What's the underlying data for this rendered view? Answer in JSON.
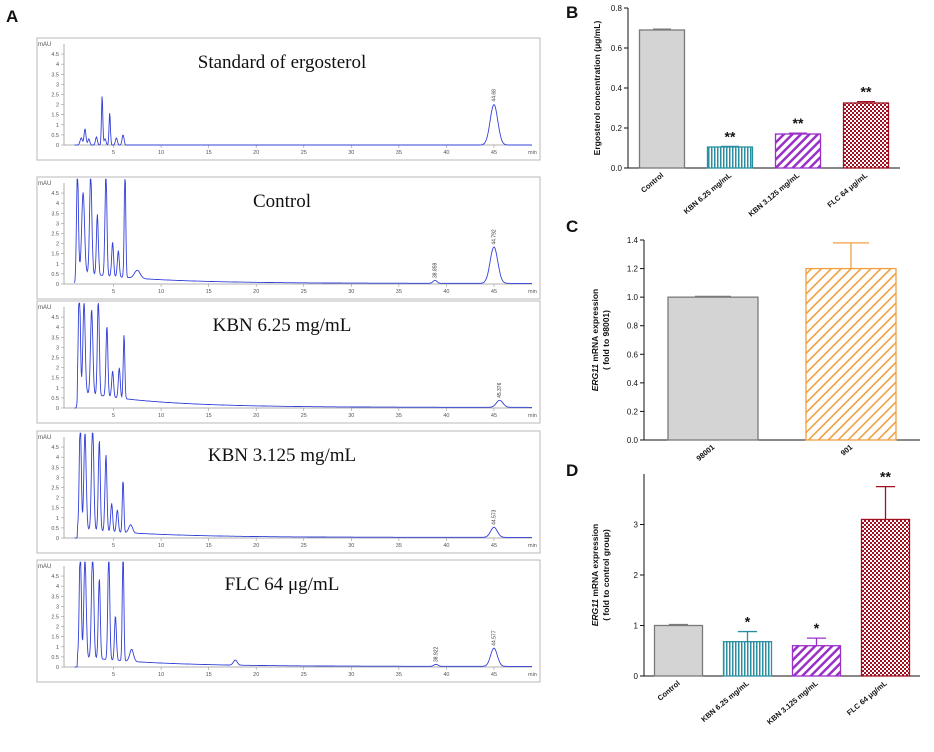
{
  "panel_letters": {
    "a": "A",
    "b": "B",
    "c": "C",
    "d": "D"
  },
  "chart_data": [
    {
      "id": "A",
      "type": "line",
      "subtype": "hplc-chromatogram-stack",
      "y_unit": "mAU",
      "x_unit": "min",
      "y_ticks": [
        "0",
        "0.5",
        "1",
        "1.5",
        "2",
        "2.5",
        "3",
        "3.5",
        "4",
        "4.5"
      ],
      "x_ticks": [
        "5",
        "10",
        "15",
        "20",
        "25",
        "30",
        "35",
        "40",
        "45"
      ],
      "xlim": [
        0,
        49
      ],
      "ylim": [
        0,
        4.8
      ],
      "traces": [
        {
          "title": "Standard of ergosterol",
          "peaks": [
            {
              "t": 1.6,
              "h": 0.35,
              "w": 0.12
            },
            {
              "t": 2.0,
              "h": 0.8,
              "w": 0.1
            },
            {
              "t": 2.4,
              "h": 0.3,
              "w": 0.1
            },
            {
              "t": 3.2,
              "h": 0.4,
              "w": 0.1
            },
            {
              "t": 3.8,
              "h": 2.45,
              "w": 0.07
            },
            {
              "t": 4.1,
              "h": 0.3,
              "w": 0.1
            },
            {
              "t": 4.6,
              "h": 1.6,
              "w": 0.07
            },
            {
              "t": 5.3,
              "h": 0.35,
              "w": 0.1
            },
            {
              "t": 6.0,
              "h": 0.5,
              "w": 0.1
            },
            {
              "t": 45.0,
              "h": 2.0,
              "w": 0.4
            }
          ],
          "baseline": 0,
          "labels": [
            {
              "t": 45.0,
              "text": "44.68"
            }
          ]
        },
        {
          "title": "Control",
          "peaks": [
            {
              "t": 1.2,
              "h": 5.5,
              "w": 0.1
            },
            {
              "t": 1.8,
              "h": 4.0,
              "w": 0.15
            },
            {
              "t": 2.6,
              "h": 5.0,
              "w": 0.12
            },
            {
              "t": 3.3,
              "h": 3.0,
              "w": 0.1
            },
            {
              "t": 4.2,
              "h": 5.2,
              "w": 0.1
            },
            {
              "t": 4.9,
              "h": 1.7,
              "w": 0.1
            },
            {
              "t": 5.5,
              "h": 1.3,
              "w": 0.1
            },
            {
              "t": 6.2,
              "h": 5.5,
              "w": 0.08
            },
            {
              "t": 7.5,
              "h": 0.4,
              "w": 0.3
            },
            {
              "t": 38.8,
              "h": 0.15,
              "w": 0.2
            },
            {
              "t": 45.0,
              "h": 1.8,
              "w": 0.4
            }
          ],
          "baseline": 0.55,
          "labels": [
            {
              "t": 38.8,
              "text": "38.859"
            },
            {
              "t": 45.0,
              "text": "44.792"
            }
          ]
        },
        {
          "title": "KBN 6.25 mg/mL",
          "peaks": [
            {
              "t": 1.4,
              "h": 5.5,
              "w": 0.1
            },
            {
              "t": 1.9,
              "h": 4.5,
              "w": 0.12
            },
            {
              "t": 2.7,
              "h": 4.2,
              "w": 0.12
            },
            {
              "t": 3.4,
              "h": 4.8,
              "w": 0.1
            },
            {
              "t": 4.3,
              "h": 3.5,
              "w": 0.1
            },
            {
              "t": 4.9,
              "h": 1.3,
              "w": 0.1
            },
            {
              "t": 5.6,
              "h": 1.5,
              "w": 0.1
            },
            {
              "t": 6.1,
              "h": 3.2,
              "w": 0.08
            },
            {
              "t": 45.6,
              "h": 0.35,
              "w": 0.35
            }
          ],
          "baseline": 0.8,
          "labels": [
            {
              "t": 45.6,
              "text": "45.376"
            }
          ]
        },
        {
          "title": "KBN 3.125 mg/mL",
          "peaks": [
            {
              "t": 1.5,
              "h": 5.5,
              "w": 0.1
            },
            {
              "t": 2.0,
              "h": 4.8,
              "w": 0.12
            },
            {
              "t": 2.8,
              "h": 5.2,
              "w": 0.12
            },
            {
              "t": 3.5,
              "h": 4.5,
              "w": 0.1
            },
            {
              "t": 4.2,
              "h": 3.8,
              "w": 0.1
            },
            {
              "t": 4.8,
              "h": 1.4,
              "w": 0.1
            },
            {
              "t": 5.4,
              "h": 1.1,
              "w": 0.1
            },
            {
              "t": 6.0,
              "h": 2.6,
              "w": 0.08
            },
            {
              "t": 6.8,
              "h": 0.4,
              "w": 0.2
            },
            {
              "t": 45.0,
              "h": 0.5,
              "w": 0.35
            }
          ],
          "baseline": 0.45,
          "labels": [
            {
              "t": 45.0,
              "text": "44.573"
            }
          ]
        },
        {
          "title": "FLC 64 μg/mL",
          "peaks": [
            {
              "t": 1.5,
              "h": 5.5,
              "w": 0.1
            },
            {
              "t": 2.0,
              "h": 5.0,
              "w": 0.12
            },
            {
              "t": 2.8,
              "h": 5.3,
              "w": 0.12
            },
            {
              "t": 3.5,
              "h": 4.0,
              "w": 0.1
            },
            {
              "t": 4.5,
              "h": 5.5,
              "w": 0.1
            },
            {
              "t": 5.2,
              "h": 2.2,
              "w": 0.1
            },
            {
              "t": 6.0,
              "h": 5.5,
              "w": 0.08
            },
            {
              "t": 6.9,
              "h": 0.6,
              "w": 0.2
            },
            {
              "t": 17.8,
              "h": 0.25,
              "w": 0.2
            },
            {
              "t": 38.9,
              "h": 0.1,
              "w": 0.2
            },
            {
              "t": 45.0,
              "h": 0.9,
              "w": 0.35
            }
          ],
          "baseline": 0.5,
          "labels": [
            {
              "t": 38.9,
              "text": "38.922"
            },
            {
              "t": 45.0,
              "text": "44.577"
            }
          ]
        }
      ]
    },
    {
      "id": "B",
      "type": "bar",
      "categories": [
        "Control",
        "KBN 6.25 mg/mL",
        "KBN 3.125 mg/mL",
        "FLC 64 μg/mL"
      ],
      "values": [
        0.69,
        0.105,
        0.17,
        0.325
      ],
      "errors": [
        0.004,
        0.003,
        0.004,
        0.007
      ],
      "significance": [
        "",
        "**",
        "**",
        "**"
      ],
      "ylabel": "Ergosterol concentration (μg/mL)",
      "ylim": [
        0,
        0.8
      ],
      "yticks": [
        "0.0",
        "0.2",
        "0.4",
        "0.6",
        "0.8"
      ],
      "colors": [
        "#7a7a7a",
        "#2a8fa0",
        "#9b30c8",
        "#a01020"
      ],
      "patterns": [
        "solid",
        "vlines",
        "diag",
        "check"
      ]
    },
    {
      "id": "C",
      "type": "bar",
      "categories": [
        "98001",
        "901"
      ],
      "values": [
        1.0,
        1.2
      ],
      "errors": [
        0.005,
        0.18
      ],
      "significance": [
        "",
        ""
      ],
      "ylabel_italic": "ERG11",
      "ylabel_rest": " mRNA expression",
      "ylabel_line2": "( fold to 98001)",
      "ylim": [
        0,
        1.4
      ],
      "yticks": [
        "0.0",
        "0.2",
        "0.4",
        "0.6",
        "0.8",
        "1.0",
        "1.2",
        "1.4"
      ],
      "colors": [
        "#7a7a7a",
        "#f0a040"
      ],
      "patterns": [
        "solid",
        "diag"
      ]
    },
    {
      "id": "D",
      "type": "bar",
      "categories": [
        "Control",
        "KBN 6.25 mg/mL",
        "KBN 3.125 mg/mL",
        "FLC 64 μg/mL"
      ],
      "values": [
        1.0,
        0.68,
        0.6,
        3.1
      ],
      "errors": [
        0.02,
        0.2,
        0.15,
        0.65
      ],
      "significance": [
        "",
        "*",
        "*",
        "**"
      ],
      "ylabel_italic": "ERG11",
      "ylabel_rest": " mRNA expression",
      "ylabel_line2": "( fold to control group)",
      "ylim": [
        0,
        4
      ],
      "yticks": [
        "0",
        "1",
        "2",
        "3"
      ],
      "colors": [
        "#7a7a7a",
        "#2a8fa0",
        "#9b30c8",
        "#a01020"
      ],
      "patterns": [
        "solid",
        "vlines",
        "diag",
        "check"
      ]
    }
  ]
}
